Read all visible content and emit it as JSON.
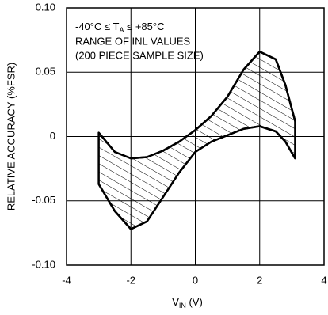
{
  "chart_data": {
    "type": "band",
    "annotation": [
      [
        "-40°C ≤ T",
        "A",
        " ≤ +85°C"
      ],
      "RANGE OF INL VALUES",
      "(200 PIECE SAMPLE SIZE)"
    ],
    "xlabel": [
      "V",
      "IN",
      " (V)"
    ],
    "ylabel": "RELATIVE ACCURACY (%FSR)",
    "x": [
      -3,
      -2.5,
      -2,
      -1.5,
      -1,
      -0.5,
      0,
      0.5,
      1,
      1.5,
      2,
      2.5,
      2.8,
      3.1
    ],
    "series": [
      {
        "color": "#000000",
        "values": [
          0.003,
          -0.012,
          -0.017,
          -0.016,
          -0.011,
          -0.004,
          0.005,
          0.016,
          0.031,
          0.052,
          0.066,
          0.06,
          0.04,
          0.012
        ]
      },
      {
        "color": "#000000",
        "values": [
          -0.037,
          -0.058,
          -0.072,
          -0.066,
          -0.047,
          -0.028,
          -0.012,
          -0.004,
          0.001,
          0.006,
          0.008,
          0.004,
          -0.004,
          -0.017
        ]
      }
    ],
    "hatch": true,
    "xlim": [
      -4,
      4
    ],
    "xticks": [
      -4,
      -2,
      0,
      2,
      4
    ],
    "ylim": [
      -0.1,
      0.1
    ],
    "yticks": [
      {
        "value": 0.1,
        "label": "0.10"
      },
      0.05,
      0,
      -0.05,
      {
        "value": -0.1,
        "label": "-0.10"
      }
    ],
    "grid": true
  }
}
